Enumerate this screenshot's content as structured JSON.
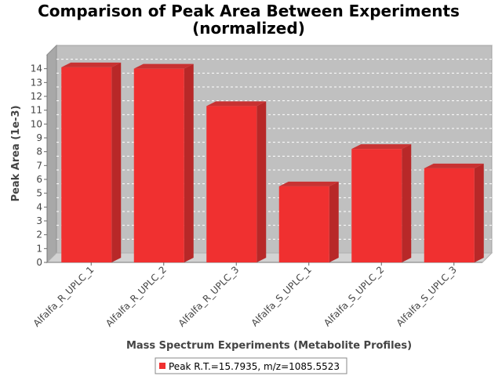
{
  "chart_data": {
    "type": "bar",
    "title_lines": [
      "Comparison of Peak Area Between Experiments",
      "(normalized)"
    ],
    "xlabel": "Mass Spectrum Experiments (Metabolite Profiles)",
    "ylabel": "Peak Area (1e-3)",
    "ylim": [
      0,
      15
    ],
    "yticks": [
      0,
      1,
      2,
      3,
      4,
      5,
      6,
      7,
      8,
      9,
      10,
      11,
      12,
      13,
      14
    ],
    "categories": [
      "Alfalfa_R_UPLC_1",
      "Alfalfa_R_UPLC_2",
      "Alfalfa_R_UPLC_3",
      "Alfalfa_S_UPLC_1",
      "Alfalfa_S_UPLC_2",
      "Alfalfa_S_UPLC_3"
    ],
    "series": [
      {
        "name": "Peak R.T.=15.7935, m/z=1085.5523",
        "values": [
          14.1,
          14.0,
          11.3,
          5.5,
          8.2,
          6.8
        ],
        "color": "#f03030"
      }
    ],
    "grid": true,
    "legend_position": "bottom-center",
    "plot_background": "#c0c0c0"
  }
}
